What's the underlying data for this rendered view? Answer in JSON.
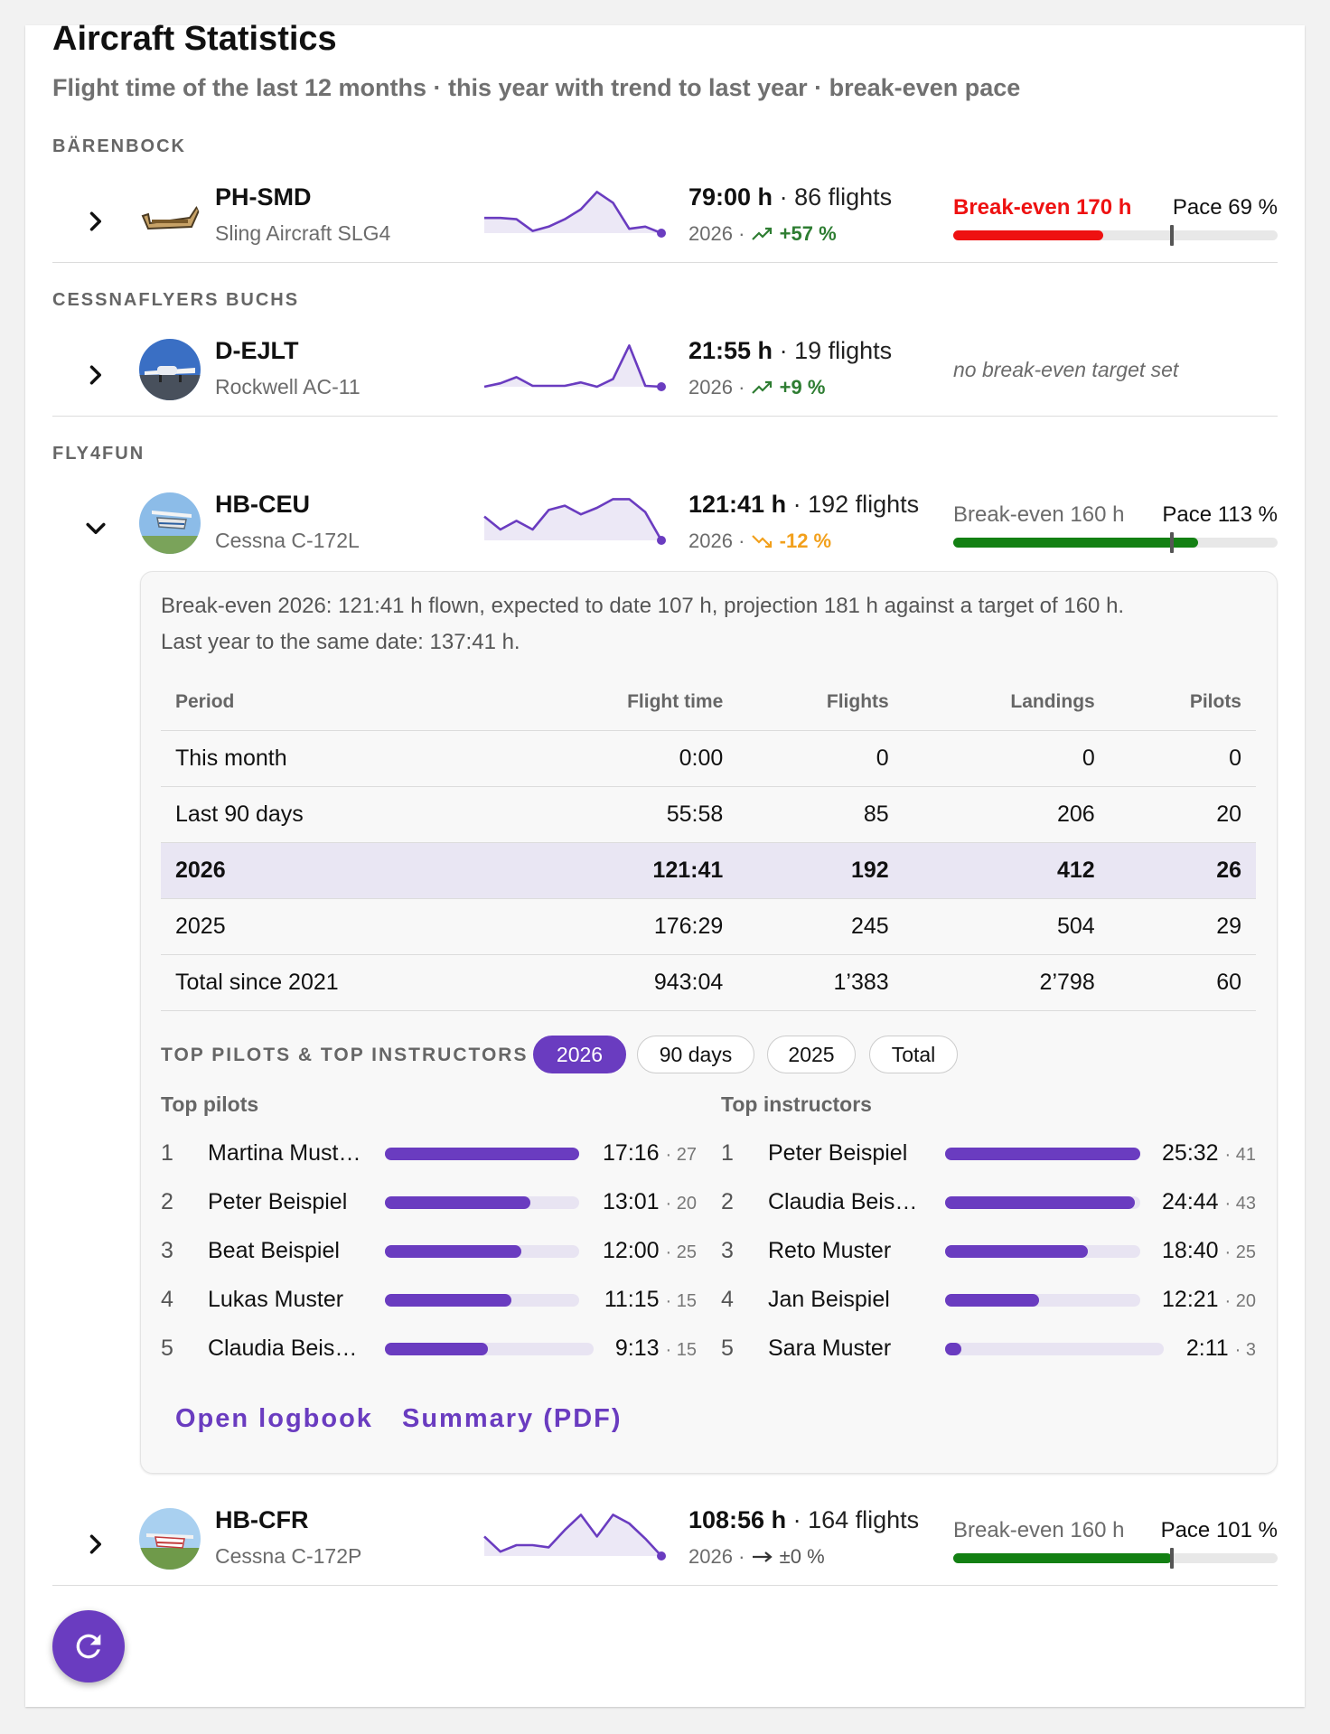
{
  "page": {
    "title": "Aircraft Statistics",
    "subtitle": "Flight time of the last 12 months · this year with trend to last year · break-even pace"
  },
  "groups": [
    {
      "name": "BÄRENBOCK"
    },
    {
      "name": "CESSNAFLYERS BUCHS"
    },
    {
      "name": "FLY4FUN"
    }
  ],
  "aircraft": [
    {
      "registration": "PH-SMD",
      "model": "Sling Aircraft SLG4",
      "hours": "79:00 h",
      "flights": "86 flights",
      "year": "2026",
      "trend": "+57 %",
      "trend_direction": "up",
      "breakeven": "Break-even 170 h",
      "pace": "Pace 69 %",
      "pace_value": 69,
      "pace_color": "#ee1111",
      "expanded": false,
      "monthly_flight_time_shape": [
        0.35,
        0.35,
        0.32,
        0.05,
        0.15,
        0.32,
        0.55,
        0.95,
        0.7,
        0.1,
        0.15,
        0.0
      ]
    },
    {
      "registration": "D-EJLT",
      "model": "Rockwell AC-11",
      "hours": "21:55 h",
      "flights": "19 flights",
      "year": "2026",
      "trend": "+9 %",
      "trend_direction": "up",
      "breakeven": "no break-even target set",
      "expanded": false,
      "monthly_flight_time_shape": [
        0.0,
        0.08,
        0.22,
        0.02,
        0.02,
        0.02,
        0.1,
        0.0,
        0.18,
        0.95,
        0.02,
        0.0
      ]
    },
    {
      "registration": "HB-CEU",
      "model": "Cessna C-172L",
      "hours": "121:41 h",
      "flights": "192 flights",
      "year": "2026",
      "trend": "-12 %",
      "trend_direction": "down",
      "breakeven": "Break-even 160 h",
      "pace": "Pace 113 %",
      "pace_value": 113,
      "pace_color": "#138013",
      "expanded": true,
      "monthly_flight_time_shape": [
        0.55,
        0.25,
        0.45,
        0.25,
        0.7,
        0.8,
        0.6,
        0.75,
        0.95,
        0.95,
        0.65,
        0.0
      ]
    },
    {
      "registration": "HB-CFR",
      "model": "Cessna C-172P",
      "hours": "108:56 h",
      "flights": "164 flights",
      "year": "2026",
      "trend": "±0 %",
      "trend_direction": "flat",
      "breakeven": "Break-even 160 h",
      "pace": "Pace 101 %",
      "pace_value": 101,
      "pace_color": "#138013",
      "expanded": false,
      "monthly_flight_time_shape": [
        0.45,
        0.1,
        0.25,
        0.25,
        0.2,
        0.6,
        0.95,
        0.45,
        0.95,
        0.75,
        0.4,
        0.0
      ]
    }
  ],
  "details": {
    "note_line1": "Break-even 2026: 121:41 h flown, expected to date 107 h, projection 181 h against a target of 160 h.",
    "note_line2": "Last year to the same date: 137:41 h.",
    "columns": [
      "Period",
      "Flight time",
      "Flights",
      "Landings",
      "Pilots"
    ],
    "rows": [
      [
        "This month",
        "0:00",
        "0",
        "0",
        "0"
      ],
      [
        "Last 90 days",
        "55:58",
        "85",
        "206",
        "20"
      ],
      [
        "2026",
        "121:41",
        "192",
        "412",
        "26"
      ],
      [
        "2025",
        "176:29",
        "245",
        "504",
        "29"
      ],
      [
        "Total since 2021",
        "943:04",
        "1’383",
        "2’798",
        "60"
      ]
    ],
    "highlight_row": 2,
    "top_label": "TOP PILOTS & TOP INSTRUCTORS",
    "chips": [
      "2026",
      "90 days",
      "2025",
      "Total"
    ],
    "active_chip": 0,
    "pilots_heading": "Top pilots",
    "instructors_heading": "Top instructors",
    "pilots": [
      {
        "rank": "1",
        "name": "Martina Must…",
        "time": "17:16",
        "count": "· 27",
        "share": 1.0
      },
      {
        "rank": "2",
        "name": "Peter Beispiel",
        "time": "13:01",
        "count": "· 20",
        "share": 0.75
      },
      {
        "rank": "3",
        "name": "Beat Beispiel",
        "time": "12:00",
        "count": "· 25",
        "share": 0.7
      },
      {
        "rank": "4",
        "name": "Lukas Muster",
        "time": "11:15",
        "count": "· 15",
        "share": 0.65
      },
      {
        "rank": "5",
        "name": "Claudia Beis…",
        "time": "9:13",
        "count": "· 15",
        "share": 0.53
      }
    ],
    "instructors": [
      {
        "rank": "1",
        "name": "Peter Beispiel",
        "time": "25:32",
        "count": "· 41",
        "share": 1.0
      },
      {
        "rank": "2",
        "name": "Claudia Beis…",
        "time": "24:44",
        "count": "· 43",
        "share": 0.97
      },
      {
        "rank": "3",
        "name": "Reto Muster",
        "time": "18:40",
        "count": "· 25",
        "share": 0.73
      },
      {
        "rank": "4",
        "name": "Jan Beispiel",
        "time": "12:21",
        "count": "· 20",
        "share": 0.48
      },
      {
        "rank": "5",
        "name": "Sara Muster",
        "time": "2:11",
        "count": "· 3",
        "share": 0.08
      }
    ],
    "actions": [
      "Open logbook",
      "Summary (PDF)"
    ]
  },
  "colors": {
    "accent": "#6a3cc0",
    "pace_red": "#ee1111",
    "pace_green": "#138013",
    "trend_up": "#2e7d32",
    "trend_down": "#f2a01c"
  },
  "icons": {
    "expand": "chevron-right-icon",
    "collapse": "chevron-down-icon",
    "refresh": "refresh-icon"
  }
}
